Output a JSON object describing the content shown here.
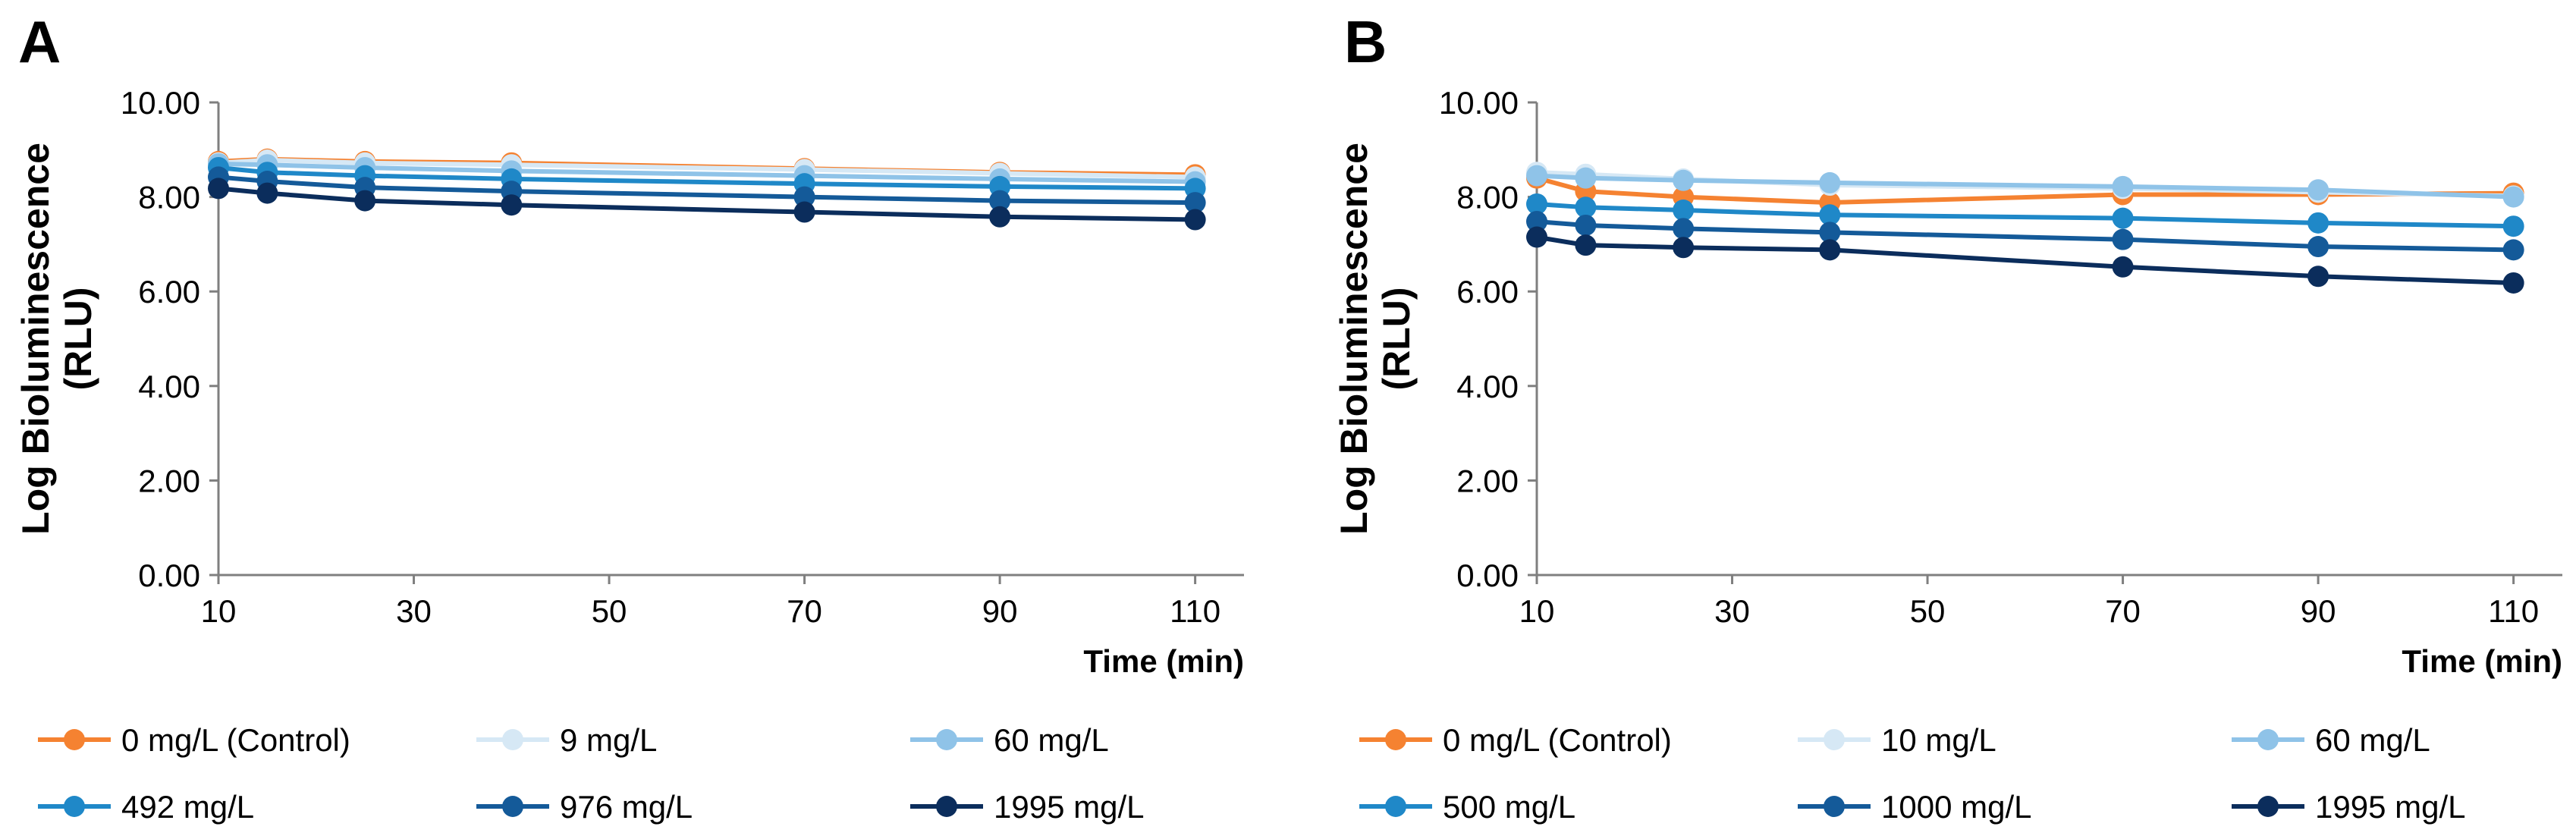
{
  "chart_data": [
    {
      "type": "line",
      "panel_label": "A",
      "xlabel": "Time (min)",
      "ylabel": [
        "Log Bioluminescence",
        "(RLU)"
      ],
      "xlim": [
        10,
        115
      ],
      "ylim": [
        0,
        10
      ],
      "x_ticks": [
        10,
        30,
        50,
        70,
        90,
        110
      ],
      "y_ticks": [
        "0.00",
        "2.00",
        "4.00",
        "6.00",
        "8.00",
        "10.00"
      ],
      "x": [
        10,
        15,
        25,
        40,
        70,
        90,
        110
      ],
      "series": [
        {
          "name": "0 mg/L (Control)",
          "color": "#f58231",
          "values": [
            8.75,
            8.8,
            8.75,
            8.72,
            8.6,
            8.52,
            8.47
          ]
        },
        {
          "name": "9 mg/L",
          "color": "#d6e8f5",
          "values": [
            8.72,
            8.78,
            8.72,
            8.68,
            8.58,
            8.5,
            8.42
          ]
        },
        {
          "name": "60 mg/L",
          "color": "#8fc3e8",
          "values": [
            8.7,
            8.68,
            8.62,
            8.55,
            8.45,
            8.38,
            8.32
          ]
        },
        {
          "name": "492 mg/L",
          "color": "#1f88c8",
          "values": [
            8.62,
            8.52,
            8.45,
            8.38,
            8.28,
            8.22,
            8.18
          ]
        },
        {
          "name": "976 mg/L",
          "color": "#145a99",
          "values": [
            8.42,
            8.33,
            8.2,
            8.12,
            8.0,
            7.92,
            7.88
          ]
        },
        {
          "name": "1995 mg/L",
          "color": "#0b2d5c",
          "values": [
            8.18,
            8.08,
            7.92,
            7.83,
            7.68,
            7.58,
            7.52
          ]
        }
      ]
    },
    {
      "type": "line",
      "panel_label": "B",
      "xlabel": "Time (min)",
      "ylabel": [
        "Log Bioluminescence",
        "(RLU)"
      ],
      "xlim": [
        10,
        115
      ],
      "ylim": [
        0,
        10
      ],
      "x_ticks": [
        10,
        30,
        50,
        70,
        90,
        110
      ],
      "y_ticks": [
        "0.00",
        "2.00",
        "4.00",
        "6.00",
        "8.00",
        "10.00"
      ],
      "x": [
        10,
        15,
        25,
        40,
        70,
        90,
        110
      ],
      "series": [
        {
          "name": "0 mg/L (Control)",
          "color": "#f58231",
          "values": [
            8.4,
            8.12,
            8.0,
            7.88,
            8.05,
            8.05,
            8.08
          ]
        },
        {
          "name": "10 mg/L",
          "color": "#d6e8f5",
          "values": [
            8.52,
            8.48,
            8.38,
            8.25,
            8.18,
            8.1,
            8.02
          ]
        },
        {
          "name": "60 mg/L",
          "color": "#8fc3e8",
          "values": [
            8.45,
            8.4,
            8.35,
            8.3,
            8.22,
            8.15,
            8.0
          ]
        },
        {
          "name": "500 mg/L",
          "color": "#1f88c8",
          "values": [
            7.85,
            7.78,
            7.72,
            7.62,
            7.55,
            7.45,
            7.38
          ]
        },
        {
          "name": "1000 mg/L",
          "color": "#145a99",
          "values": [
            7.48,
            7.4,
            7.33,
            7.25,
            7.1,
            6.95,
            6.88
          ]
        },
        {
          "name": "1995 mg/L",
          "color": "#0b2d5c",
          "values": [
            7.15,
            6.98,
            6.93,
            6.88,
            6.52,
            6.32,
            6.18
          ]
        }
      ]
    }
  ]
}
